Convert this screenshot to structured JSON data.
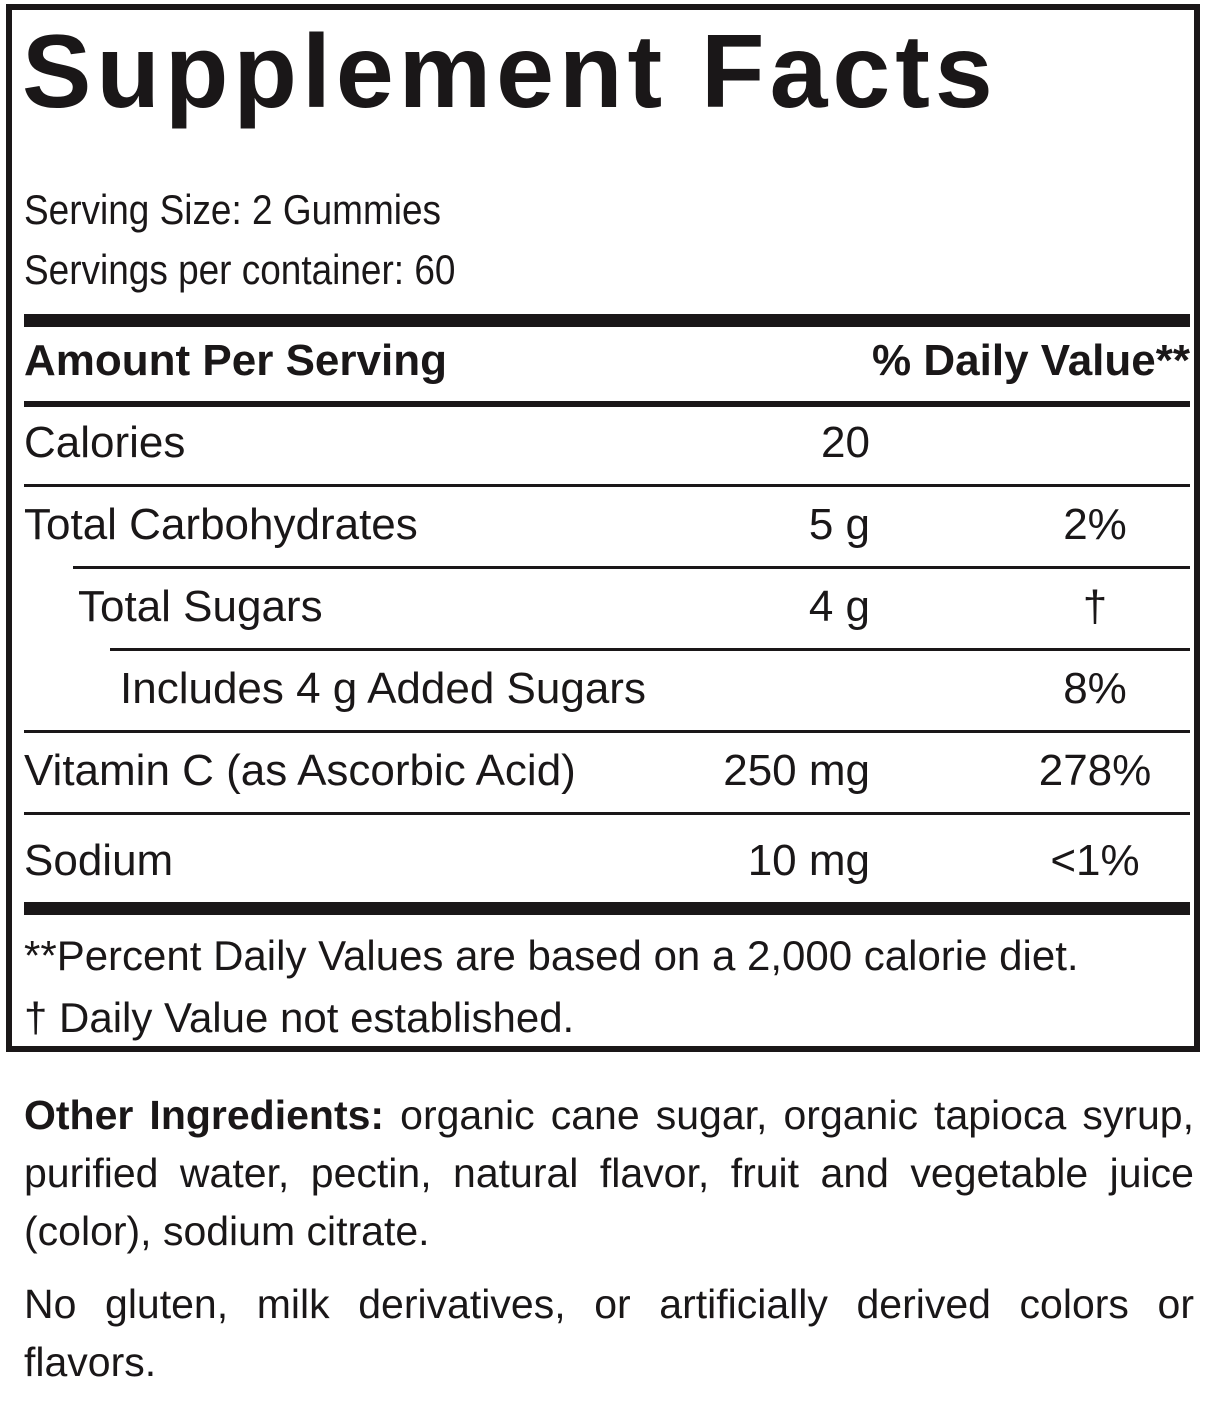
{
  "title": "Supplement Facts",
  "serving_size": "Serving Size: 2 Gummies",
  "servings_per_container": "Servings per container: 60",
  "header": {
    "amount": "Amount Per Serving",
    "dv": "% Daily Value**"
  },
  "rows": [
    {
      "name": "Calories",
      "amount": "20",
      "dv": ""
    },
    {
      "name": "Total Carbohydrates",
      "amount": "5 g",
      "dv": "2%"
    },
    {
      "name": "Total Sugars",
      "amount": "4 g",
      "dv": "†"
    },
    {
      "name": "Includes 4 g Added Sugars",
      "amount": "",
      "dv": "8%"
    },
    {
      "name": "Vitamin C (as Ascorbic Acid)",
      "amount": "250 mg",
      "dv": "278%"
    },
    {
      "name": "Sodium",
      "amount": "10 mg",
      "dv": "<1%"
    }
  ],
  "footnotes": [
    "**Percent Daily Values are based on a 2,000 calorie diet.",
    "†  Daily Value not established."
  ],
  "other_ingredients": {
    "label": "Other Ingredients:",
    "text": " organic cane sugar, organic tapioca syrup, purified water, pectin, natural flavor, fruit and vegetable juice (color), sodium citrate."
  },
  "allergen_note": "No gluten, milk derivatives, or artificially derived colors or flavors."
}
